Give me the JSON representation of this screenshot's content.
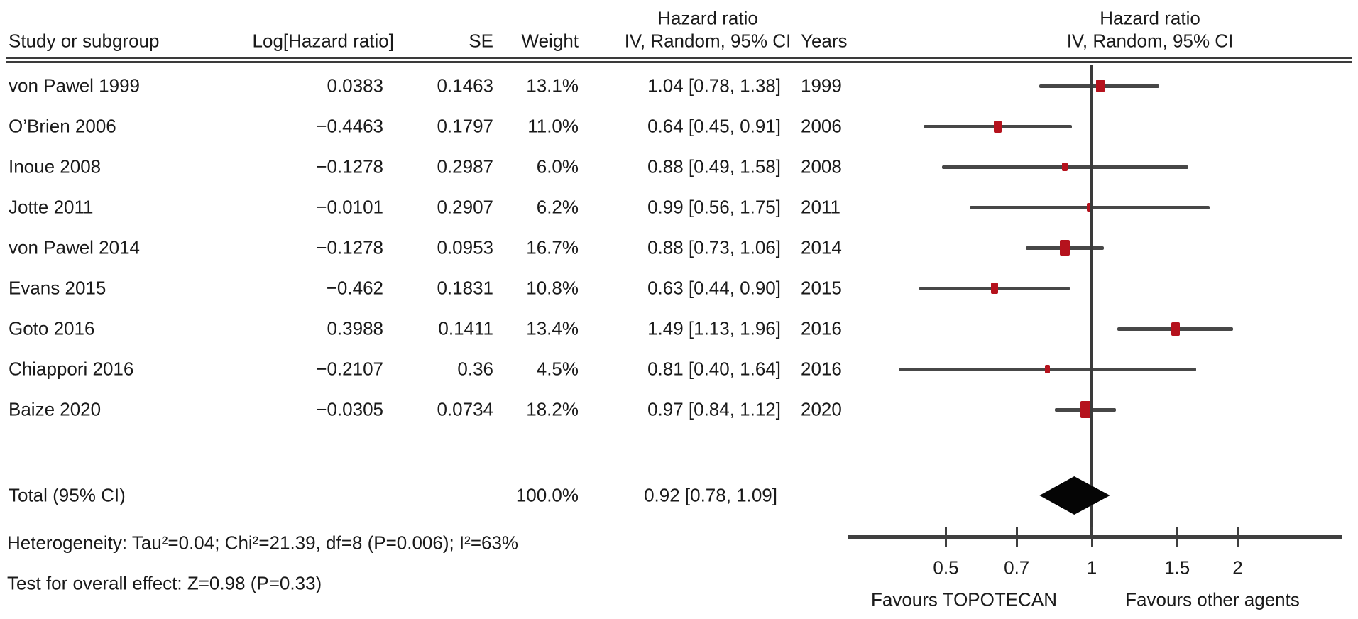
{
  "figure_title": "Forest plot: hazard ratios, IV random-effects meta-analysis",
  "header": {
    "study": "Study or subgroup",
    "log_hr": "Log[Hazard ratio]",
    "se": "SE",
    "weight": "Weight",
    "ci_group": "Hazard ratio",
    "ci_sub": "IV, Random, 95% CI",
    "years": "Years",
    "plot_group": "Hazard ratio",
    "plot_sub": "IV, Random, 95% CI"
  },
  "chart_data": {
    "type": "forest",
    "x_scale": "log",
    "axis_ticks": [
      "0.5",
      "0.7",
      "1",
      "1.5",
      "2"
    ],
    "axis_tick_values": [
      0.5,
      0.7,
      1,
      1.5,
      2
    ],
    "axis_range_approx": [
      0.31,
      3.3
    ],
    "null_line": 1,
    "favours_left": "Favours TOPOTECAN",
    "favours_right": "Favours other agents",
    "studies": [
      {
        "name": "von Pawel 1999",
        "log_hr": "0.0383",
        "se": "0.1463",
        "weight_text": "13.1%",
        "weight": 13.1,
        "ci_text": "1.04 [0.78, 1.38]",
        "hr": 1.04,
        "lo": 0.78,
        "hi": 1.38,
        "year": "1999"
      },
      {
        "name": "O’Brien 2006",
        "log_hr": "−0.4463",
        "se": "0.1797",
        "weight_text": "11.0%",
        "weight": 11.0,
        "ci_text": "0.64 [0.45, 0.91]",
        "hr": 0.64,
        "lo": 0.45,
        "hi": 0.91,
        "year": "2006"
      },
      {
        "name": "Inoue 2008",
        "log_hr": "−0.1278",
        "se": "0.2987",
        "weight_text": "6.0%",
        "weight": 6.0,
        "ci_text": "0.88 [0.49, 1.58]",
        "hr": 0.88,
        "lo": 0.49,
        "hi": 1.58,
        "year": "2008"
      },
      {
        "name": "Jotte 2011",
        "log_hr": "−0.0101",
        "se": "0.2907",
        "weight_text": "6.2%",
        "weight": 6.2,
        "ci_text": "0.99 [0.56, 1.75]",
        "hr": 0.99,
        "lo": 0.56,
        "hi": 1.75,
        "year": "2011"
      },
      {
        "name": "von Pawel 2014",
        "log_hr": "−0.1278",
        "se": "0.0953",
        "weight_text": "16.7%",
        "weight": 16.7,
        "ci_text": "0.88 [0.73, 1.06]",
        "hr": 0.88,
        "lo": 0.73,
        "hi": 1.06,
        "year": "2014"
      },
      {
        "name": "Evans 2015",
        "log_hr": "−0.462",
        "se": "0.1831",
        "weight_text": "10.8%",
        "weight": 10.8,
        "ci_text": "0.63 [0.44, 0.90]",
        "hr": 0.63,
        "lo": 0.44,
        "hi": 0.9,
        "year": "2015"
      },
      {
        "name": "Goto 2016",
        "log_hr": "0.3988",
        "se": "0.1411",
        "weight_text": "13.4%",
        "weight": 13.4,
        "ci_text": "1.49 [1.13, 1.96]",
        "hr": 1.49,
        "lo": 1.13,
        "hi": 1.96,
        "year": "2016"
      },
      {
        "name": "Chiappori 2016",
        "log_hr": "−0.2107",
        "se": "0.36",
        "weight_text": "4.5%",
        "weight": 4.5,
        "ci_text": "0.81 [0.40, 1.64]",
        "hr": 0.81,
        "lo": 0.4,
        "hi": 1.64,
        "year": "2016"
      },
      {
        "name": "Baize 2020",
        "log_hr": "−0.0305",
        "se": "0.0734",
        "weight_text": "18.2%",
        "weight": 18.2,
        "ci_text": "0.97 [0.84, 1.12]",
        "hr": 0.97,
        "lo": 0.84,
        "hi": 1.12,
        "year": "2020"
      }
    ],
    "total": {
      "label": "Total (95% CI)",
      "weight_text": "100.0%",
      "ci_text": "0.92 [0.78, 1.09]",
      "hr": 0.92,
      "lo": 0.78,
      "hi": 1.09
    },
    "footnotes": {
      "heterogeneity": "Heterogeneity: Tau²=0.04; Chi²=21.39, df=8 (P=0.006); I²=63%",
      "overall_effect": "Test for overall effect: Z=0.98 (P=0.33)"
    },
    "colors": {
      "marker": "#b5121d",
      "ci_line": "#474747",
      "diamond": "#050505",
      "axis": "#3f3f3f",
      "text": "#1a1a1a"
    }
  }
}
